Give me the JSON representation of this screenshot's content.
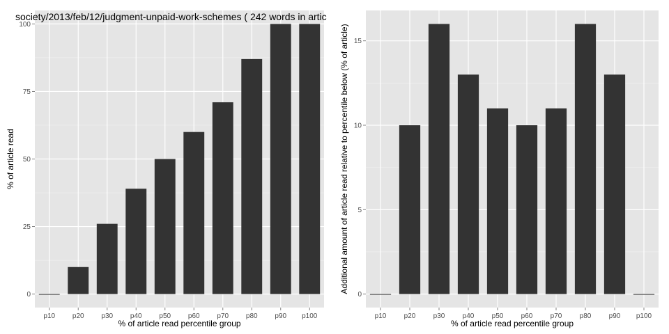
{
  "chart_data": [
    {
      "type": "bar",
      "title": "society/2013/feb/12/judgment-unpaid-work-schemes ( 242 words in artic",
      "xlabel": "% of article read percentile group",
      "ylabel": "% of article read",
      "categories": [
        "p10",
        "p20",
        "p30",
        "p40",
        "p50",
        "p60",
        "p70",
        "p80",
        "p90",
        "p100"
      ],
      "values": [
        0,
        10,
        26,
        39,
        50,
        60,
        71,
        87,
        100,
        100
      ],
      "ylim": [
        -5,
        105
      ],
      "yticks": [
        0,
        25,
        50,
        75,
        100
      ],
      "grid": true,
      "colors": {
        "bar": "#333333",
        "panel": "#e5e5e5",
        "grid_major": "#ffffff",
        "grid_minor": "#f2f2f2"
      }
    },
    {
      "type": "bar",
      "title": "",
      "xlabel": "% of article read percentile group",
      "ylabel": "Additional amount of article read relative to percentile below (% of article)",
      "categories": [
        "p10",
        "p20",
        "p30",
        "p40",
        "p50",
        "p60",
        "p70",
        "p80",
        "p90",
        "p100"
      ],
      "values": [
        0,
        10,
        16,
        13,
        11,
        10,
        11,
        16,
        13,
        0
      ],
      "ylim": [
        -0.8,
        16.8
      ],
      "yticks": [
        0,
        5,
        10,
        15
      ],
      "grid": true,
      "colors": {
        "bar": "#333333",
        "panel": "#e5e5e5",
        "grid_major": "#ffffff",
        "grid_minor": "#f2f2f2"
      }
    }
  ]
}
